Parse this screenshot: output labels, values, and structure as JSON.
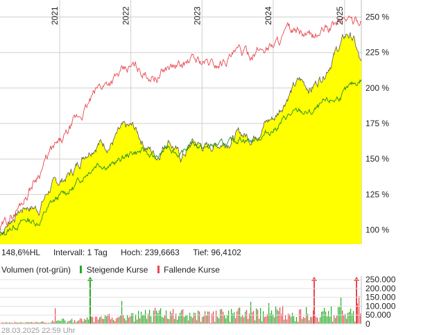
{
  "chart_data": [
    {
      "type": "area",
      "x_ticks": [
        "2021",
        "2022",
        "2023",
        "2024",
        "2025"
      ],
      "y_ticks": [
        "100 %",
        "125 %",
        "150 %",
        "175 %",
        "200 %",
        "225 %",
        "250 %"
      ],
      "ylim": [
        90,
        262
      ],
      "grid": true,
      "x": [
        "2020-03",
        "2020-05",
        "2020-07",
        "2020-09",
        "2020-11",
        "2021-01",
        "2021-03",
        "2021-05",
        "2021-07",
        "2021-09",
        "2021-11",
        "2022-01",
        "2022-03",
        "2022-05",
        "2022-07",
        "2022-09",
        "2022-11",
        "2023-01",
        "2023-03",
        "2023-05",
        "2023-07",
        "2023-09",
        "2023-11",
        "2024-01",
        "2024-03",
        "2024-05",
        "2024-07",
        "2024-09",
        "2024-11",
        "2025-01",
        "2025-02",
        "2025-03"
      ],
      "series": [
        {
          "values": [
            98,
            110,
            117,
            115,
            130,
            135,
            142,
            155,
            162,
            160,
            170,
            172,
            160,
            152,
            165,
            150,
            162,
            158,
            160,
            163,
            168,
            165,
            175,
            180,
            195,
            205,
            200,
            210,
            225,
            238,
            235,
            215
          ],
          "color": "#ffff00"
        },
        {
          "values": [
            95,
            103,
            107,
            105,
            118,
            125,
            130,
            140,
            148,
            145,
            150,
            155,
            155,
            150,
            160,
            152,
            162,
            157,
            160,
            160,
            165,
            163,
            167,
            172,
            180,
            183,
            182,
            188,
            192,
            198,
            202,
            206
          ],
          "color": "#228b22"
        },
        {
          "values": [
            100,
            112,
            125,
            140,
            155,
            162,
            175,
            185,
            200,
            205,
            210,
            215,
            210,
            208,
            215,
            215,
            220,
            218,
            216,
            222,
            225,
            224,
            228,
            232,
            240,
            238,
            235,
            240,
            245,
            250,
            247,
            248
          ],
          "color": "#e8474e"
        }
      ]
    },
    {
      "type": "bar",
      "title": "Volumen (rot-grün)",
      "legend": [
        "Steigende Kurse",
        "Fallende Kurse"
      ],
      "legend_colors": [
        "#22aa22",
        "#e8474e"
      ],
      "y_ticks": [
        "250.000",
        "200.000",
        "150.000",
        "100.000",
        "50.000",
        "0"
      ],
      "ylim": [
        0,
        270000
      ]
    }
  ],
  "stats": {
    "change": "148,6%HL",
    "interval": "Intervall: 1 Tag",
    "high": "Hoch: 239,6663",
    "low": "Tief: 96,4102"
  },
  "timestamp": "28.03.2025 22:59 Uhr"
}
